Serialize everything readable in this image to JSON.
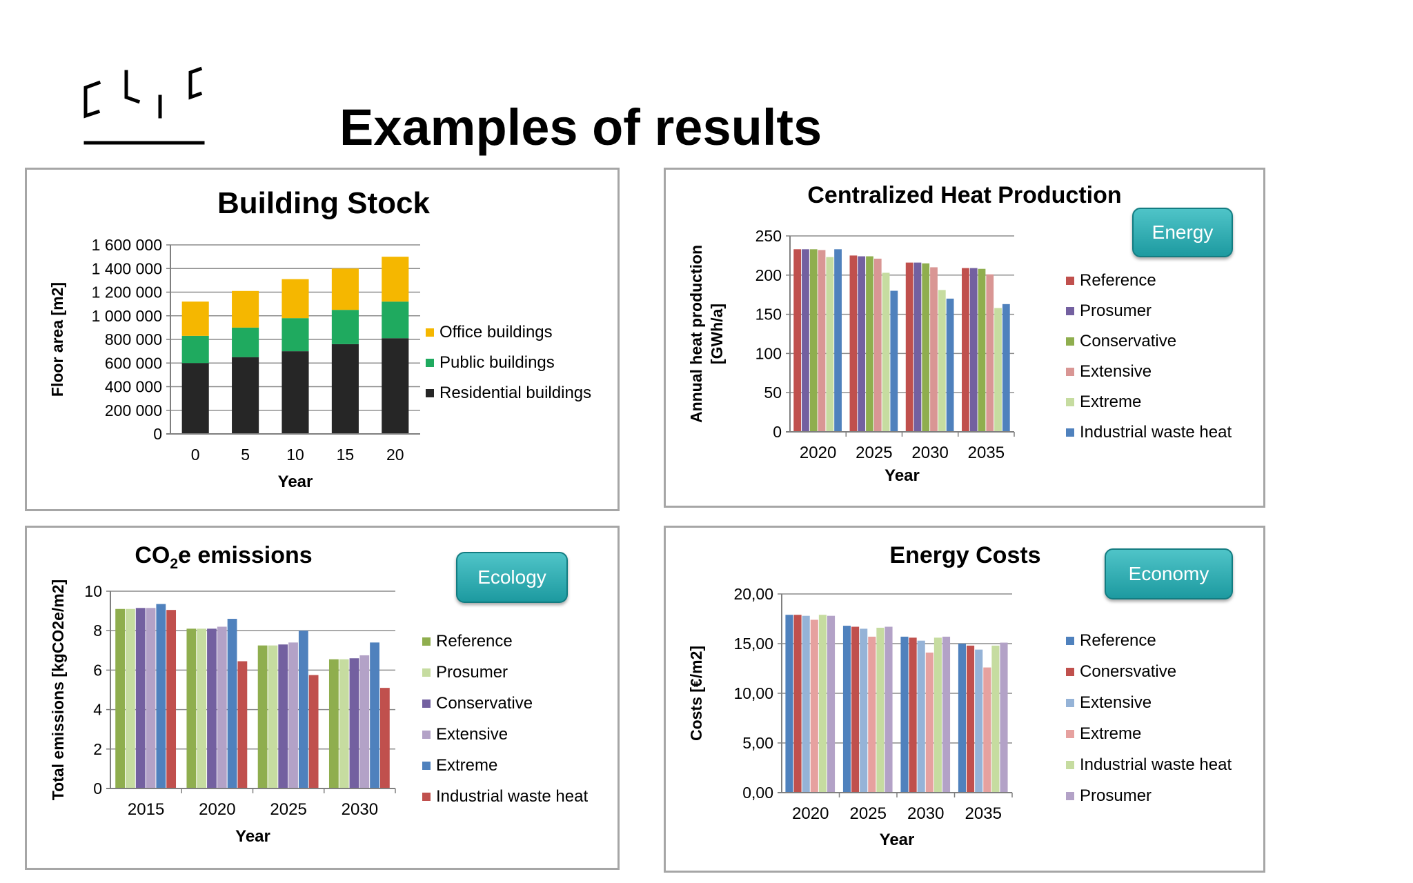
{
  "slide": {
    "title": "Examples of results"
  },
  "colors": {
    "badge": "#22a3a8"
  },
  "chart_data": [
    {
      "id": "building",
      "type": "bar",
      "stacked": true,
      "title": "Building Stock",
      "xlabel": "Year",
      "ylabel": "Floor area [m2]",
      "categories": [
        "0",
        "5",
        "10",
        "15",
        "20"
      ],
      "ylim": [
        0,
        1600000
      ],
      "yticks": [
        "0",
        "200 000",
        "400 000",
        "600 000",
        "800 000",
        "1 000 000",
        "1 200 000",
        "1 400 000",
        "1 600 000"
      ],
      "legend_position": "right",
      "series": [
        {
          "name": "Residential buildings",
          "color": "#262626",
          "values": [
            600000,
            650000,
            700000,
            760000,
            810000
          ]
        },
        {
          "name": "Public buildings",
          "color": "#1faa5f",
          "values": [
            230000,
            250000,
            280000,
            290000,
            310000
          ]
        },
        {
          "name": "Office buildings",
          "color": "#f5b700",
          "values": [
            290000,
            310000,
            330000,
            350000,
            380000
          ]
        }
      ]
    },
    {
      "id": "heat",
      "type": "bar",
      "title": "Centralized Heat Production",
      "badge": "Energy",
      "xlabel": "Year",
      "ylabel": [
        "Annual heat production",
        "[GWh/a]"
      ],
      "categories": [
        "2020",
        "2025",
        "2030",
        "2035"
      ],
      "ylim": [
        0,
        250
      ],
      "yticks": [
        "0",
        "50",
        "100",
        "150",
        "200",
        "250"
      ],
      "legend_position": "right",
      "series": [
        {
          "name": "Reference",
          "color": "#c0504d",
          "values": [
            233,
            225,
            216,
            209
          ]
        },
        {
          "name": "Prosumer",
          "color": "#7360a0",
          "values": [
            233,
            224,
            216,
            209
          ]
        },
        {
          "name": "Conservative",
          "color": "#8fae4e",
          "values": [
            233,
            224,
            215,
            208
          ]
        },
        {
          "name": "Extensive",
          "color": "#d99694",
          "values": [
            232,
            221,
            210,
            201
          ]
        },
        {
          "name": "Extreme",
          "color": "#c6dca0",
          "values": [
            223,
            203,
            181,
            158
          ]
        },
        {
          "name": "Industrial waste heat",
          "color": "#4f81bd",
          "values": [
            233,
            180,
            170,
            163
          ]
        }
      ]
    },
    {
      "id": "co2",
      "type": "bar",
      "title_parts": [
        "CO",
        "2",
        "e emissions"
      ],
      "badge": "Ecology",
      "xlabel": "Year",
      "ylabel": "Total emissions [kgCO2e/m2]",
      "categories": [
        "2015",
        "2020",
        "2025",
        "2030"
      ],
      "ylim": [
        0,
        10
      ],
      "yticks": [
        "0",
        "2",
        "4",
        "6",
        "8",
        "10"
      ],
      "legend_position": "right",
      "series": [
        {
          "name": "Reference",
          "color": "#8fae4e",
          "values": [
            9.1,
            8.1,
            7.25,
            6.55
          ]
        },
        {
          "name": "Prosumer",
          "color": "#c6dca0",
          "values": [
            9.1,
            8.1,
            7.25,
            6.55
          ]
        },
        {
          "name": "Conservative",
          "color": "#7360a0",
          "values": [
            9.15,
            8.1,
            7.3,
            6.6
          ]
        },
        {
          "name": "Extensive",
          "color": "#b3a2c7",
          "values": [
            9.15,
            8.2,
            7.4,
            6.75
          ]
        },
        {
          "name": "Extreme",
          "color": "#4f81bd",
          "values": [
            9.35,
            8.6,
            8.0,
            7.4
          ]
        },
        {
          "name": "Industrial waste heat",
          "color": "#c0504d",
          "values": [
            9.05,
            6.45,
            5.75,
            5.1
          ]
        }
      ]
    },
    {
      "id": "costs",
      "type": "bar",
      "title": "Energy Costs",
      "badge": "Economy",
      "xlabel": "Year",
      "ylabel": "Costs [€/m2]",
      "categories": [
        "2020",
        "2025",
        "2030",
        "2035"
      ],
      "ylim": [
        0,
        20
      ],
      "yticks": [
        "0,00",
        "5,00",
        "10,00",
        "15,00",
        "20,00"
      ],
      "legend_position": "right",
      "series": [
        {
          "name": "Reference",
          "color": "#4f81bd",
          "values": [
            17.9,
            16.8,
            15.7,
            15.0
          ]
        },
        {
          "name": "Conersvative",
          "color": "#c0504d",
          "values": [
            17.9,
            16.7,
            15.6,
            14.8
          ]
        },
        {
          "name": "Extensive",
          "color": "#95b3d7",
          "values": [
            17.8,
            16.5,
            15.3,
            14.4
          ]
        },
        {
          "name": "Extreme",
          "color": "#e6a19f",
          "values": [
            17.4,
            15.7,
            14.1,
            12.6
          ]
        },
        {
          "name": "Industrial waste heat",
          "color": "#c6dca0",
          "values": [
            17.9,
            16.6,
            15.6,
            14.8
          ]
        },
        {
          "name": "Prosumer",
          "color": "#b3a2c7",
          "values": [
            17.8,
            16.7,
            15.7,
            15.1
          ]
        }
      ]
    }
  ]
}
